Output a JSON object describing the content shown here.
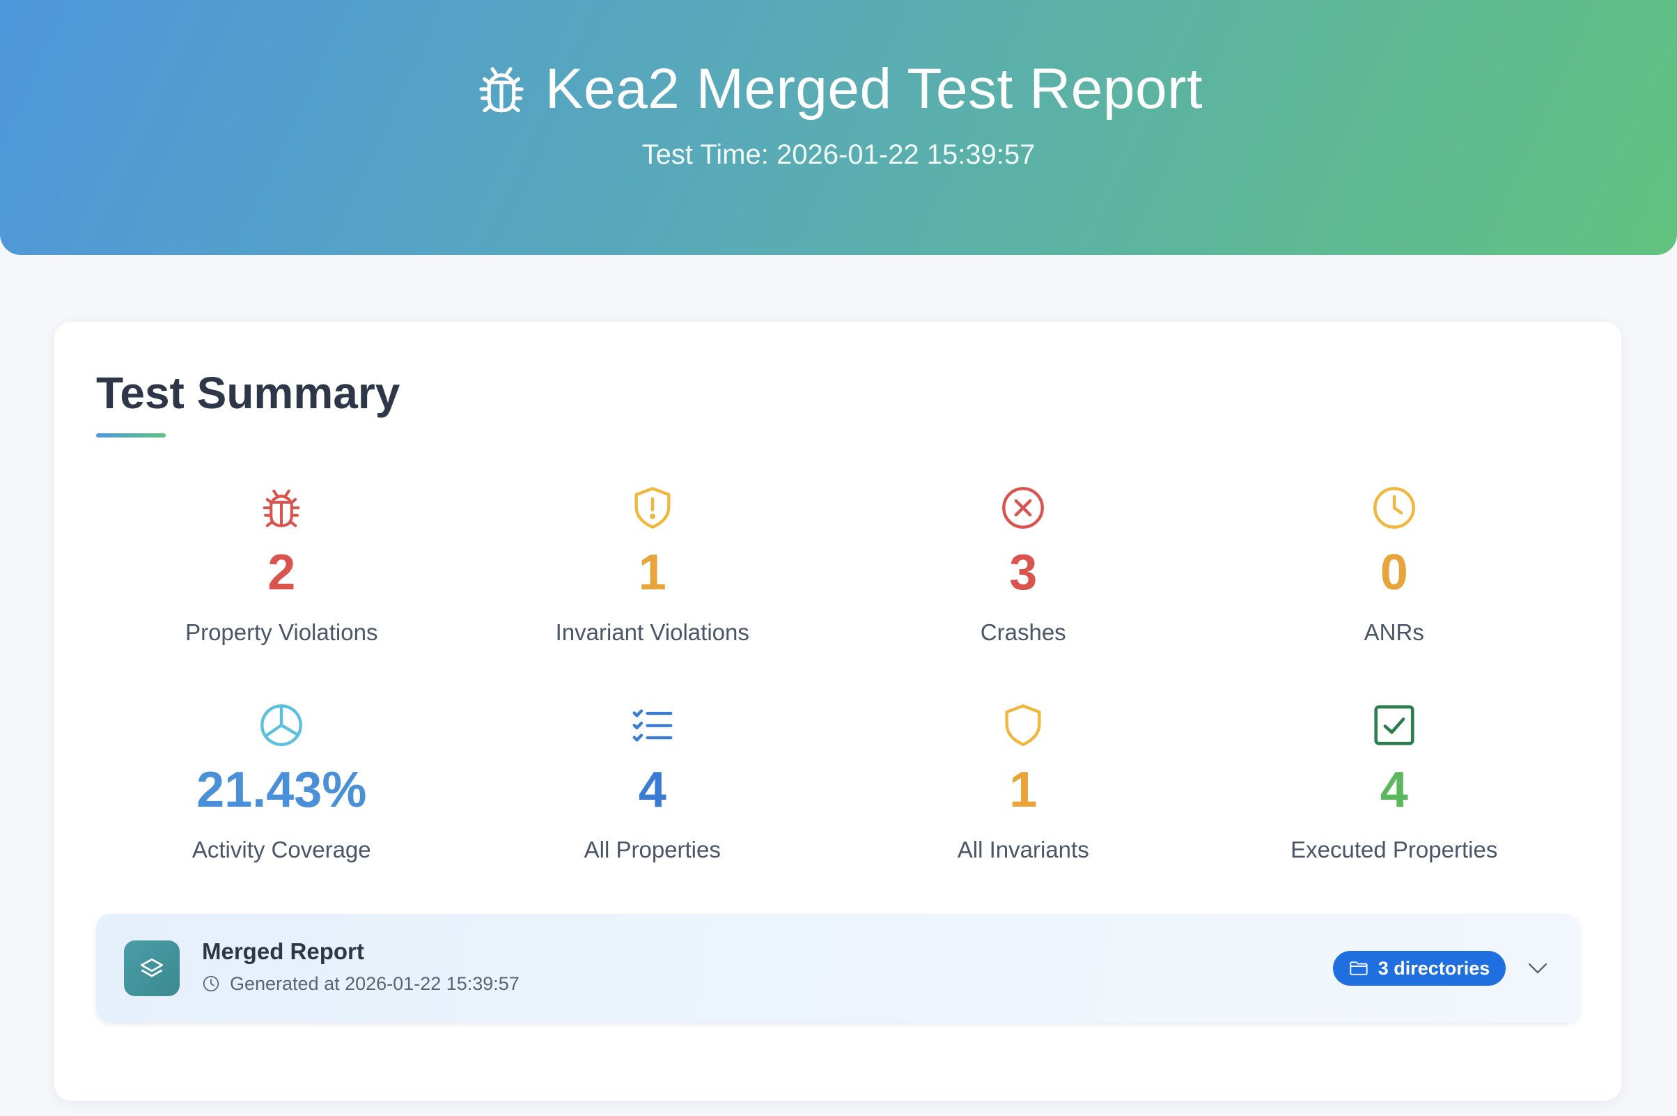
{
  "header": {
    "title": "Kea2 Merged Test Report",
    "test_time": "Test Time: 2026-01-22 15:39:57",
    "icon": "bug-icon"
  },
  "summary": {
    "title": "Test Summary",
    "stats": [
      {
        "value": "2",
        "label": "Property Violations",
        "icon": "bug-icon",
        "color": "#d9534f"
      },
      {
        "value": "1",
        "label": "Invariant Violations",
        "icon": "shield-alert-icon",
        "color": "#e8a33a"
      },
      {
        "value": "3",
        "label": "Crashes",
        "icon": "x-circle-icon",
        "color": "#d9534f"
      },
      {
        "value": "0",
        "label": "ANRs",
        "icon": "clock-icon",
        "color": "#e8a33a"
      },
      {
        "value": "21.43%",
        "label": "Activity Coverage",
        "icon": "pie-chart-icon",
        "color": "#4a90d9"
      },
      {
        "value": "4",
        "label": "All Properties",
        "icon": "checklist-icon",
        "color": "#3a7bd5"
      },
      {
        "value": "1",
        "label": "All Invariants",
        "icon": "shield-icon",
        "color": "#e8a33a"
      },
      {
        "value": "4",
        "label": "Executed Properties",
        "icon": "check-square-icon",
        "color": "#5cb85c"
      }
    ]
  },
  "merged_report": {
    "title": "Merged Report",
    "generated": "Generated at 2026-01-22 15:39:57",
    "directories_badge": "3 directories",
    "icon": "layers-icon"
  }
}
